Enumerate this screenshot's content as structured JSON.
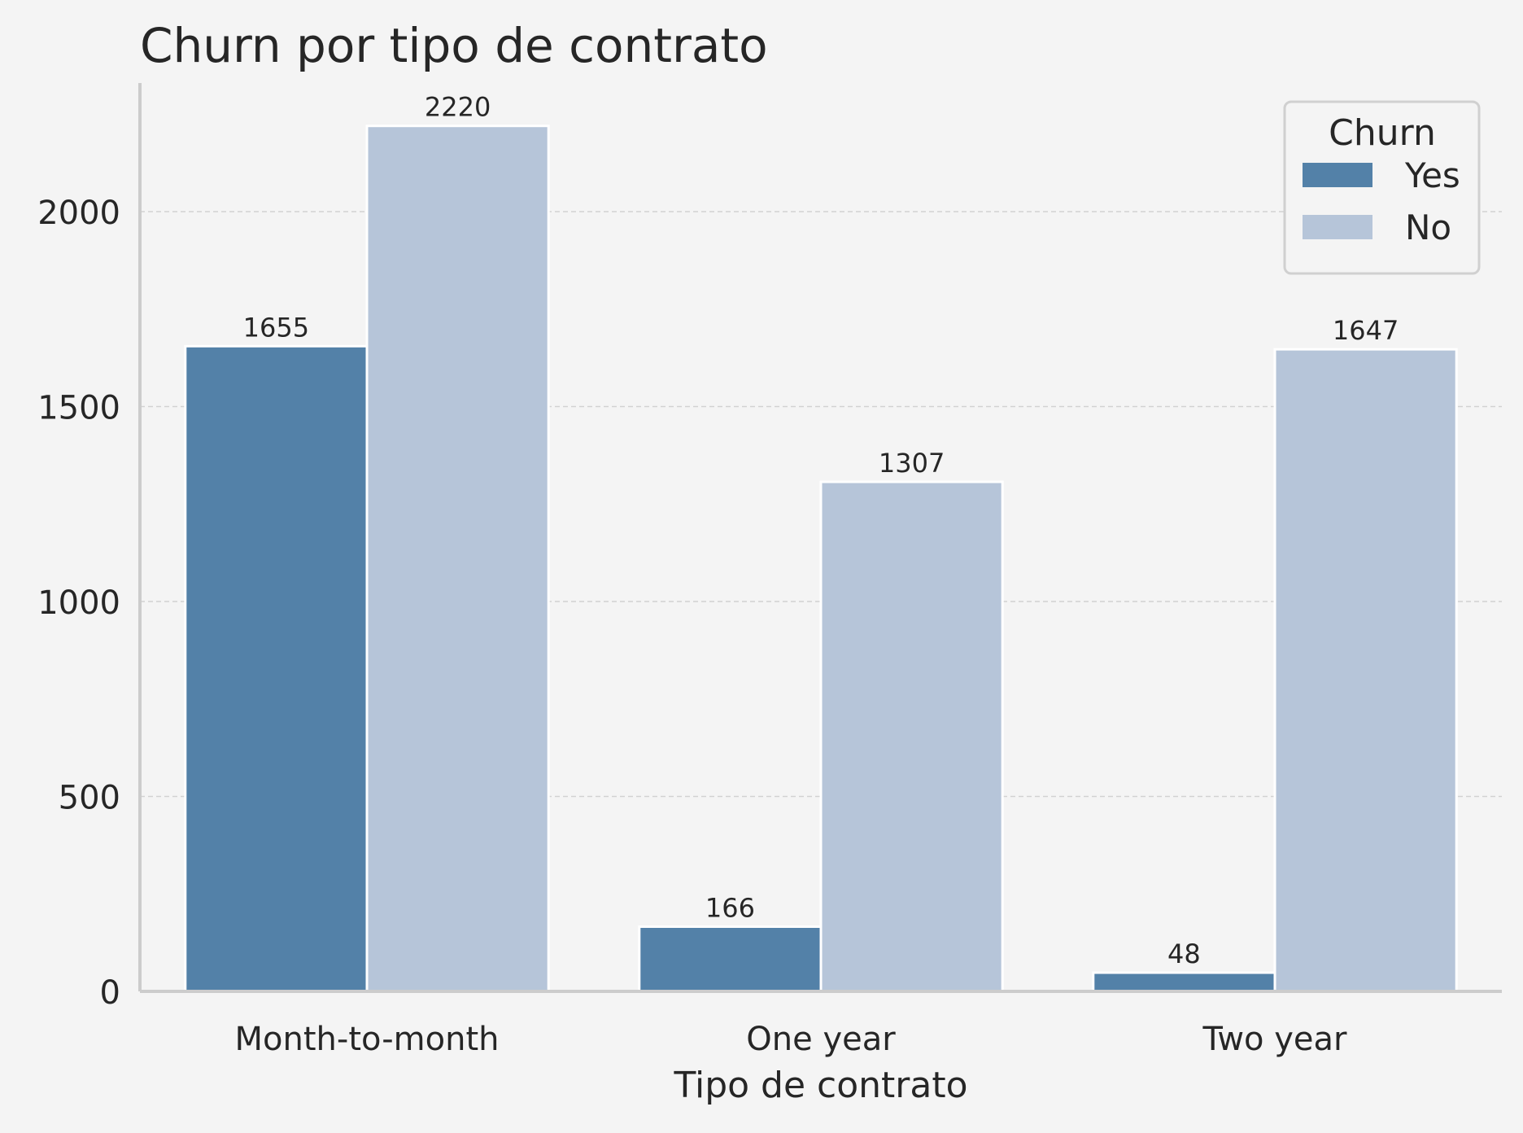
{
  "chart_data": {
    "type": "bar",
    "title": "Churn por tipo de contrato",
    "xlabel": "Tipo de contrato",
    "ylabel": "",
    "categories": [
      "Month-to-month",
      "One year",
      "Two year"
    ],
    "series": [
      {
        "name": "Yes",
        "values": [
          1655,
          166,
          48
        ],
        "color": "#5381a8"
      },
      {
        "name": "No",
        "values": [
          2220,
          1307,
          1647
        ],
        "color": "#b6c5d9"
      }
    ],
    "ylim": [
      0,
      2330
    ],
    "yticks": [
      0,
      500,
      1000,
      1500,
      2000
    ],
    "grid": "y-dashed",
    "legend": {
      "title": "Churn",
      "placement": "top-right"
    },
    "data_labels": true
  }
}
